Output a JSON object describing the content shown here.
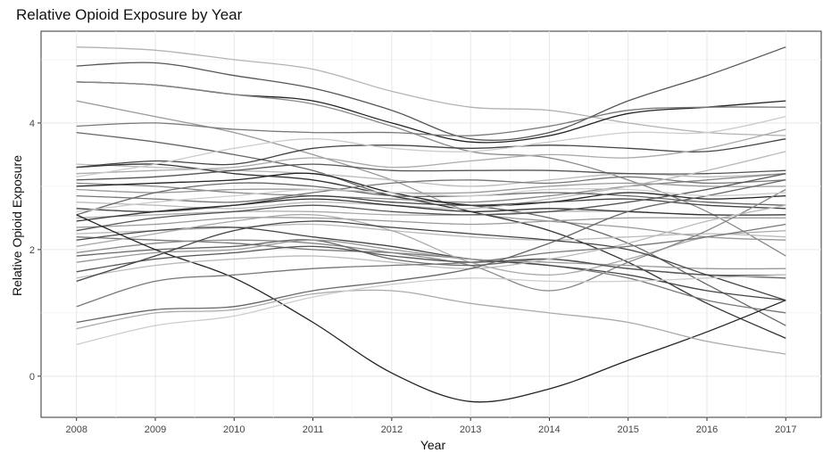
{
  "chart_data": {
    "type": "line",
    "title": "Relative Opioid Exposure by Year",
    "xlabel": "Year",
    "ylabel": "Relative Opioid Exposure",
    "x": [
      2008,
      2009,
      2010,
      2011,
      2012,
      2013,
      2014,
      2015,
      2016,
      2017
    ],
    "xlim": [
      2007.55,
      2017.45
    ],
    "ylim": [
      -0.65,
      5.45
    ],
    "y_ticks": [
      0,
      2,
      4
    ],
    "grid": true,
    "legend": "none",
    "series": [
      {
        "color": "#b3b3b3",
        "values": [
          5.2,
          5.15,
          5.0,
          4.85,
          4.5,
          4.25,
          4.2,
          4.0,
          3.85,
          3.8
        ]
      },
      {
        "color": "#555555",
        "values": [
          4.9,
          4.95,
          4.75,
          4.55,
          4.2,
          3.75,
          3.85,
          4.35,
          4.75,
          5.2
        ]
      },
      {
        "color": "#222222",
        "values": [
          4.65,
          4.6,
          4.45,
          4.35,
          4.0,
          3.7,
          3.8,
          4.15,
          4.25,
          4.35
        ]
      },
      {
        "color": "#888888",
        "values": [
          4.65,
          4.6,
          4.45,
          4.3,
          3.95,
          3.55,
          3.45,
          3.1,
          2.6,
          1.9
        ]
      },
      {
        "color": "#999999",
        "values": [
          4.35,
          4.1,
          3.85,
          3.5,
          3.1,
          2.6,
          2.45,
          2.35,
          2.2,
          2.15
        ]
      },
      {
        "color": "#777777",
        "values": [
          3.95,
          4.0,
          3.9,
          3.85,
          3.85,
          3.8,
          3.95,
          4.2,
          4.25,
          4.25
        ]
      },
      {
        "color": "#666666",
        "values": [
          3.85,
          3.7,
          3.5,
          3.25,
          2.85,
          2.7,
          2.5,
          2.1,
          1.45,
          0.8
        ]
      },
      {
        "color": "#bbbbbb",
        "values": [
          3.35,
          3.3,
          3.25,
          3.2,
          3.1,
          3.0,
          3.1,
          3.2,
          3.15,
          3.2
        ]
      },
      {
        "color": "#333333",
        "values": [
          3.3,
          3.35,
          3.2,
          3.1,
          2.85,
          2.6,
          2.3,
          1.8,
          1.15,
          0.6
        ]
      },
      {
        "color": "#444444",
        "values": [
          3.3,
          3.4,
          3.35,
          3.6,
          3.65,
          3.6,
          3.65,
          3.6,
          3.55,
          3.75
        ]
      },
      {
        "color": "#aaaaaa",
        "values": [
          3.2,
          3.25,
          3.3,
          3.45,
          3.3,
          3.4,
          3.5,
          3.45,
          3.6,
          3.9
        ]
      },
      {
        "color": "#555555",
        "values": [
          3.1,
          3.15,
          3.25,
          3.35,
          3.25,
          3.25,
          3.25,
          3.2,
          3.2,
          3.25
        ]
      },
      {
        "color": "#888888",
        "values": [
          3.05,
          3.0,
          2.9,
          2.85,
          2.8,
          2.75,
          2.85,
          3.0,
          3.1,
          3.2
        ]
      },
      {
        "color": "#222222",
        "values": [
          3.0,
          3.05,
          3.1,
          3.2,
          2.9,
          2.7,
          2.75,
          2.9,
          2.8,
          2.85
        ]
      },
      {
        "color": "#999999",
        "values": [
          2.95,
          2.9,
          2.95,
          2.95,
          2.9,
          2.9,
          3.0,
          3.05,
          3.0,
          3.0
        ]
      },
      {
        "color": "#777777",
        "values": [
          2.85,
          2.8,
          2.75,
          2.9,
          3.05,
          3.1,
          3.05,
          3.15,
          3.05,
          3.1
        ]
      },
      {
        "color": "#bbbbbb",
        "values": [
          2.75,
          2.7,
          2.65,
          2.75,
          2.7,
          2.65,
          2.8,
          3.0,
          3.25,
          3.55
        ]
      },
      {
        "color": "#444444",
        "values": [
          2.65,
          2.6,
          2.7,
          2.85,
          2.75,
          2.7,
          2.75,
          2.8,
          2.7,
          2.65
        ]
      },
      {
        "color": "#666666",
        "values": [
          2.55,
          2.9,
          3.05,
          3.0,
          2.85,
          2.85,
          2.9,
          2.85,
          2.75,
          2.7
        ]
      },
      {
        "color": "#aaaaaa",
        "values": [
          2.5,
          2.55,
          2.6,
          2.6,
          2.55,
          2.55,
          2.6,
          2.6,
          2.55,
          2.55
        ]
      },
      {
        "color": "#333333",
        "values": [
          2.45,
          2.6,
          2.7,
          2.8,
          2.7,
          2.6,
          2.65,
          2.6,
          2.55,
          2.55
        ]
      },
      {
        "color": "#999999",
        "values": [
          2.35,
          2.4,
          2.5,
          2.5,
          2.45,
          2.4,
          2.45,
          2.5,
          2.5,
          2.5
        ]
      },
      {
        "color": "#555555",
        "values": [
          2.3,
          2.5,
          2.6,
          2.7,
          2.6,
          2.55,
          2.6,
          2.75,
          2.95,
          3.2
        ]
      },
      {
        "color": "#bbbbbb",
        "values": [
          2.25,
          2.3,
          2.35,
          2.4,
          2.3,
          2.2,
          2.15,
          2.2,
          2.25,
          2.2
        ]
      },
      {
        "color": "#777777",
        "values": [
          2.2,
          2.15,
          2.1,
          2.0,
          1.95,
          1.85,
          1.75,
          1.55,
          1.2,
          1.0
        ]
      },
      {
        "color": "#444444",
        "values": [
          2.15,
          2.3,
          2.35,
          2.2,
          2.05,
          1.85,
          1.75,
          1.6,
          1.35,
          1.2
        ]
      },
      {
        "color": "#aaaaaa",
        "values": [
          2.05,
          2.25,
          2.45,
          2.55,
          2.3,
          1.8,
          1.6,
          1.85,
          2.2,
          2.3
        ]
      },
      {
        "color": "#888888",
        "values": [
          1.95,
          2.1,
          2.15,
          2.1,
          1.95,
          1.75,
          1.35,
          1.8,
          2.3,
          2.95
        ]
      },
      {
        "color": "#666666",
        "values": [
          1.9,
          2.0,
          2.05,
          2.15,
          1.85,
          1.75,
          1.85,
          1.7,
          1.6,
          1.55
        ]
      },
      {
        "color": "#222222",
        "values": [
          2.55,
          2.0,
          1.55,
          0.85,
          0.05,
          -0.4,
          -0.2,
          0.25,
          0.7,
          1.2
        ]
      },
      {
        "color": "#999999",
        "values": [
          1.8,
          1.95,
          2.0,
          2.15,
          2.0,
          1.85,
          1.8,
          1.75,
          1.7,
          1.7
        ]
      },
      {
        "color": "#555555",
        "values": [
          1.65,
          1.85,
          1.95,
          2.05,
          1.9,
          1.8,
          1.85,
          1.7,
          1.6,
          1.6
        ]
      },
      {
        "color": "#bbbbbb",
        "values": [
          1.55,
          1.75,
          1.85,
          1.9,
          1.8,
          1.7,
          1.85,
          2.1,
          2.45,
          2.7
        ]
      },
      {
        "color": "#444444",
        "values": [
          1.5,
          1.9,
          2.3,
          2.45,
          2.35,
          2.25,
          2.15,
          2.0,
          1.6,
          1.2
        ]
      },
      {
        "color": "#777777",
        "values": [
          1.1,
          1.5,
          1.6,
          1.7,
          1.75,
          1.8,
          1.95,
          2.05,
          2.2,
          2.4
        ]
      },
      {
        "color": "#666666",
        "values": [
          0.85,
          1.05,
          1.1,
          1.35,
          1.5,
          1.7,
          2.1,
          2.6,
          2.85,
          3.1
        ]
      },
      {
        "color": "#aaaaaa",
        "values": [
          0.75,
          1.0,
          1.05,
          1.3,
          1.35,
          1.15,
          1.0,
          0.85,
          0.55,
          0.35
        ]
      },
      {
        "color": "#cccccc",
        "values": [
          0.5,
          0.8,
          0.95,
          1.25,
          1.45,
          1.55,
          1.5,
          1.5,
          1.55,
          1.6
        ]
      },
      {
        "color": "#cccccc",
        "values": [
          3.15,
          3.35,
          3.6,
          3.75,
          3.6,
          3.55,
          3.7,
          3.85,
          3.85,
          4.1
        ]
      },
      {
        "color": "#cccccc",
        "values": [
          2.6,
          2.75,
          2.85,
          2.95,
          2.9,
          2.85,
          2.95,
          2.95,
          2.85,
          2.9
        ]
      }
    ]
  }
}
